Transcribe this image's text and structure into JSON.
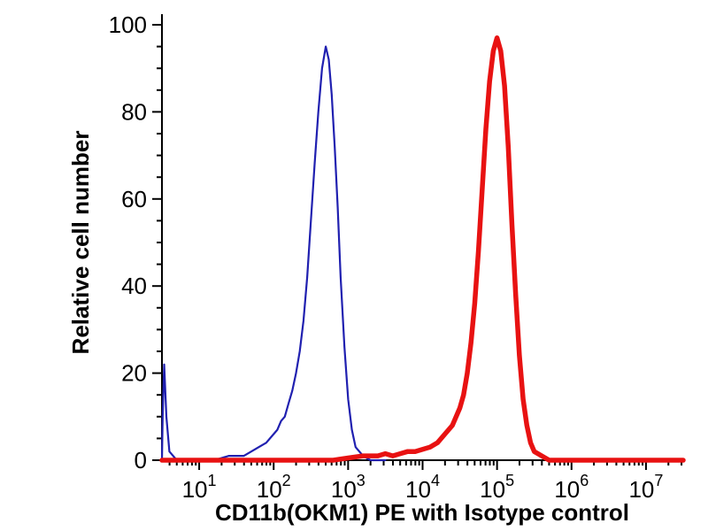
{
  "figure": {
    "kind": "flow-cytometry-overlay-histogram",
    "background": "#ffffff",
    "axis_color": "#000000"
  },
  "chart_data": {
    "type": "line",
    "title": "",
    "xlabel": "CD11b(OKM1) PE with Isotype control",
    "ylabel": "Relative cell number",
    "x_scale": "log10",
    "x_range_log10": [
      0.5,
      7.5
    ],
    "ylim": [
      0,
      100
    ],
    "x_major_tick_exponents": [
      1,
      2,
      3,
      4,
      5,
      6,
      7
    ],
    "x_tick_base": "10",
    "y_major_ticks": [
      0,
      20,
      40,
      60,
      80,
      100
    ],
    "y_minor_step": 5,
    "grid": false,
    "legend_position": "none",
    "series": [
      {
        "name": "Isotype control",
        "color": "#2020b0",
        "stroke_width": 2.2,
        "peak_log10x": 2.7,
        "peak_value": 95,
        "points_log10x_y": [
          [
            0.5,
            0
          ],
          [
            0.51,
            10
          ],
          [
            0.53,
            22
          ],
          [
            0.56,
            10
          ],
          [
            0.6,
            2
          ],
          [
            0.7,
            0
          ],
          [
            1.2,
            0
          ],
          [
            1.4,
            1
          ],
          [
            1.6,
            1
          ],
          [
            1.8,
            3
          ],
          [
            1.9,
            4
          ],
          [
            2.0,
            6
          ],
          [
            2.05,
            7
          ],
          [
            2.1,
            9
          ],
          [
            2.15,
            10
          ],
          [
            2.2,
            13
          ],
          [
            2.25,
            16
          ],
          [
            2.3,
            20
          ],
          [
            2.35,
            25
          ],
          [
            2.4,
            32
          ],
          [
            2.45,
            42
          ],
          [
            2.5,
            55
          ],
          [
            2.55,
            68
          ],
          [
            2.6,
            80
          ],
          [
            2.65,
            90
          ],
          [
            2.7,
            95
          ],
          [
            2.74,
            92
          ],
          [
            2.78,
            84
          ],
          [
            2.82,
            72
          ],
          [
            2.86,
            58
          ],
          [
            2.9,
            42
          ],
          [
            2.95,
            26
          ],
          [
            3.0,
            14
          ],
          [
            3.05,
            7
          ],
          [
            3.1,
            3
          ],
          [
            3.2,
            1
          ],
          [
            3.3,
            0
          ],
          [
            3.5,
            0
          ]
        ]
      },
      {
        "name": "CD11b(OKM1) PE",
        "color": "#e81212",
        "stroke_width": 5.5,
        "peak_log10x": 5.0,
        "peak_value": 97,
        "points_log10x_y": [
          [
            0.5,
            0
          ],
          [
            2.8,
            0
          ],
          [
            3.0,
            0.5
          ],
          [
            3.2,
            1
          ],
          [
            3.4,
            1
          ],
          [
            3.5,
            1.5
          ],
          [
            3.6,
            1
          ],
          [
            3.7,
            1.5
          ],
          [
            3.8,
            2
          ],
          [
            3.9,
            2
          ],
          [
            4.0,
            2.5
          ],
          [
            4.1,
            3
          ],
          [
            4.2,
            4
          ],
          [
            4.3,
            6
          ],
          [
            4.4,
            8
          ],
          [
            4.5,
            12
          ],
          [
            4.55,
            15
          ],
          [
            4.6,
            20
          ],
          [
            4.65,
            27
          ],
          [
            4.7,
            36
          ],
          [
            4.75,
            48
          ],
          [
            4.8,
            62
          ],
          [
            4.85,
            76
          ],
          [
            4.9,
            87
          ],
          [
            4.95,
            94
          ],
          [
            5.0,
            97
          ],
          [
            5.05,
            94
          ],
          [
            5.1,
            86
          ],
          [
            5.15,
            72
          ],
          [
            5.2,
            54
          ],
          [
            5.25,
            38
          ],
          [
            5.3,
            24
          ],
          [
            5.35,
            14
          ],
          [
            5.4,
            8
          ],
          [
            5.45,
            4
          ],
          [
            5.5,
            2
          ],
          [
            5.6,
            1
          ],
          [
            5.7,
            0
          ],
          [
            7.5,
            0
          ]
        ]
      }
    ]
  }
}
